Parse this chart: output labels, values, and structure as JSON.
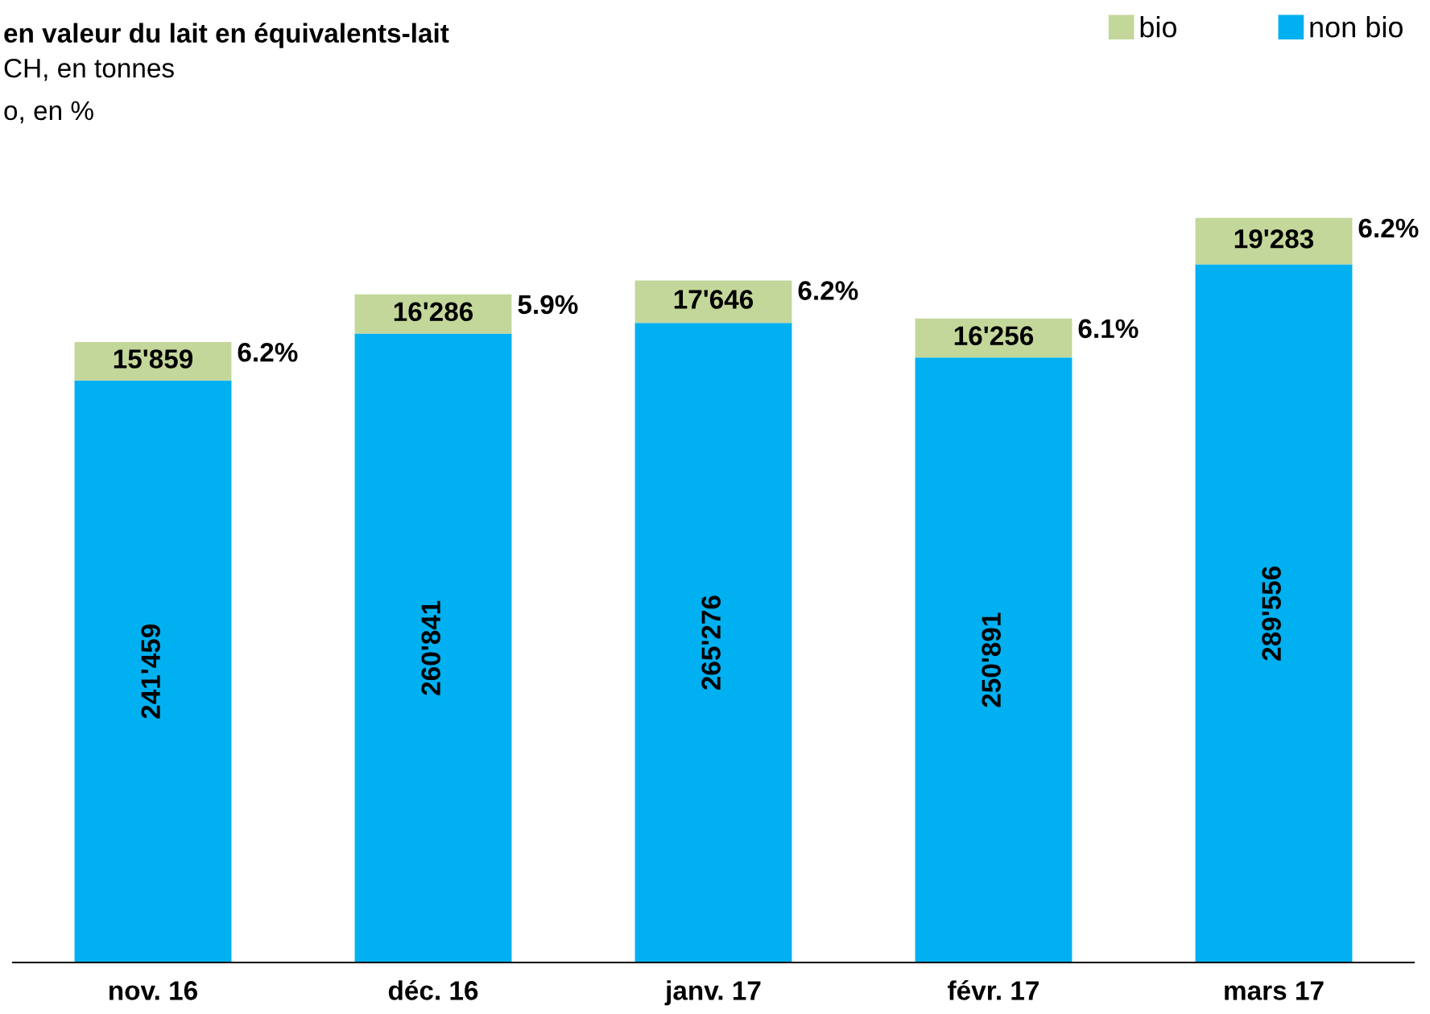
{
  "chart_data": {
    "type": "bar",
    "title": "en valeur du lait en équivalents-lait",
    "subtitle": "CH, en tonnes\no, en %",
    "categories": [
      "nov. 16",
      "déc. 16",
      "janv. 17",
      "févr. 17",
      "mars 17"
    ],
    "stacked": true,
    "legend": "top right",
    "grid": false,
    "series": [
      {
        "name": "non bio",
        "color": "#00b0f0",
        "values": [
          241459,
          260841,
          265276,
          250891,
          289556
        ],
        "value_labels": [
          "241'459",
          "260'841",
          "265'276",
          "250'891",
          "289'556"
        ]
      },
      {
        "name": "bio",
        "color": "#c4d79b",
        "values": [
          15859,
          16286,
          17646,
          16256,
          19283
        ],
        "value_labels": [
          "15'859",
          "16'286",
          "17'646",
          "16'256",
          "19'283"
        ]
      }
    ],
    "annotations": [
      "6.2%",
      "5.9%",
      "6.2%",
      "6.1%",
      "6.2%"
    ]
  }
}
